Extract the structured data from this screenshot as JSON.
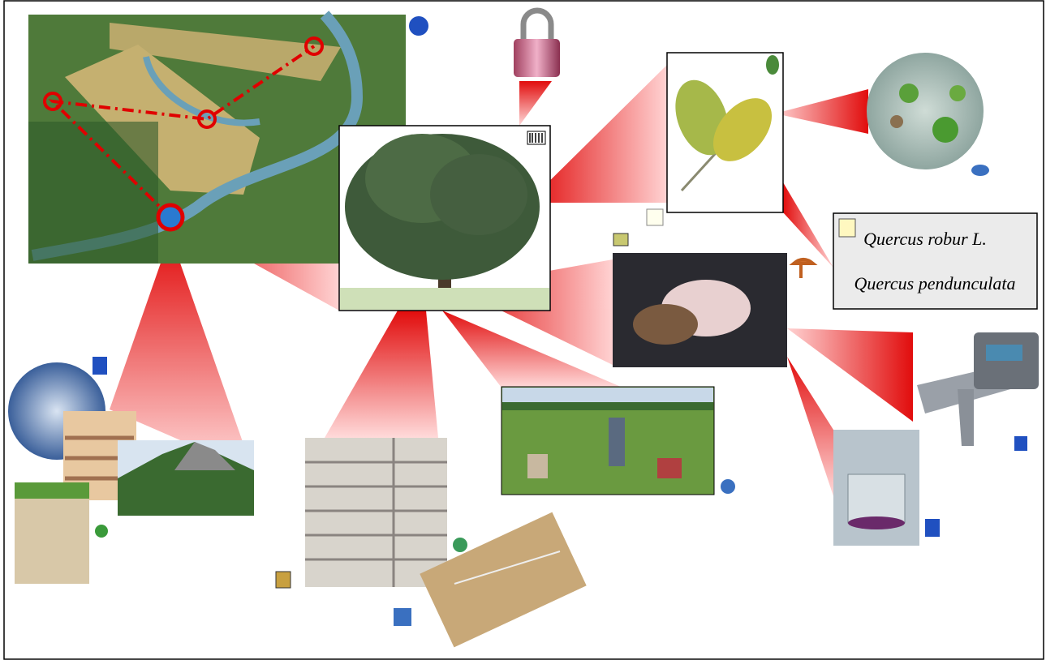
{
  "species_box": {
    "lines": [
      "Quercus robur L.",
      "Quercus pendunculata"
    ]
  }
}
